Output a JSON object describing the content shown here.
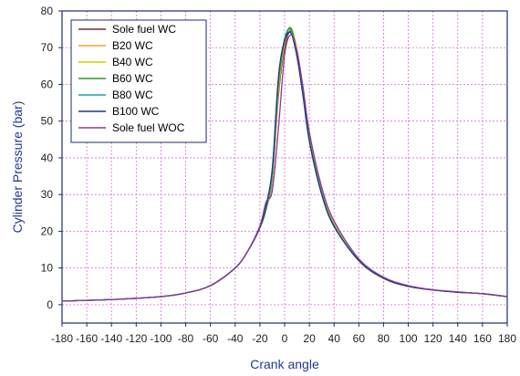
{
  "chart_data": {
    "type": "line",
    "title": "",
    "xlabel": "Crank angle",
    "ylabel": "Cylinder Pressure (bar)",
    "xlim": [
      -180,
      180
    ],
    "ylim": [
      -5,
      80
    ],
    "xticks": [
      -180,
      -160,
      -140,
      -120,
      -100,
      -80,
      -60,
      -40,
      -20,
      0,
      20,
      40,
      60,
      80,
      100,
      120,
      140,
      160,
      180
    ],
    "yticks": [
      0,
      10,
      20,
      30,
      40,
      50,
      60,
      70,
      80
    ],
    "grid": true,
    "legend_position": "top-left",
    "series": [
      {
        "name": "Sole fuel WC",
        "color": "#6b2e2e",
        "x": [
          -180,
          -140,
          -100,
          -80,
          -60,
          -40,
          -30,
          -20,
          -15,
          -10,
          -5,
          0,
          5,
          10,
          15,
          20,
          30,
          40,
          60,
          80,
          100,
          120,
          140,
          160,
          180
        ],
        "y": [
          1.0,
          1.4,
          2.2,
          3.2,
          5.2,
          10.0,
          14.5,
          21.0,
          26.0,
          34.0,
          57.0,
          70.0,
          74.5,
          69.0,
          58.0,
          46.0,
          31.0,
          22.0,
          12.0,
          7.2,
          5.0,
          4.0,
          3.4,
          3.0,
          2.2
        ]
      },
      {
        "name": "B20 WC",
        "color": "#f0a030",
        "x": [
          -180,
          -140,
          -100,
          -80,
          -60,
          -40,
          -30,
          -20,
          -15,
          -10,
          -5,
          0,
          5,
          10,
          15,
          20,
          30,
          40,
          60,
          80,
          100,
          120,
          140,
          160,
          180
        ],
        "y": [
          1.0,
          1.4,
          2.2,
          3.2,
          5.2,
          10.0,
          14.5,
          21.0,
          26.0,
          34.5,
          58.0,
          71.0,
          75.2,
          69.5,
          58.5,
          46.0,
          31.0,
          22.0,
          12.0,
          7.2,
          5.0,
          4.0,
          3.4,
          3.0,
          2.2
        ]
      },
      {
        "name": "B40 WC",
        "color": "#c8d000",
        "x": [
          -180,
          -140,
          -100,
          -80,
          -60,
          -40,
          -30,
          -20,
          -15,
          -10,
          -5,
          0,
          5,
          10,
          15,
          20,
          30,
          40,
          60,
          80,
          100,
          120,
          140,
          160,
          180
        ],
        "y": [
          1.0,
          1.4,
          2.2,
          3.2,
          5.2,
          10.0,
          14.5,
          21.0,
          26.0,
          35.0,
          59.0,
          71.5,
          75.5,
          69.0,
          58.0,
          45.5,
          30.5,
          21.8,
          12.0,
          7.2,
          5.0,
          4.0,
          3.4,
          3.0,
          2.2
        ]
      },
      {
        "name": "B60 WC",
        "color": "#2e9a2e",
        "x": [
          -180,
          -140,
          -100,
          -80,
          -60,
          -40,
          -30,
          -20,
          -15,
          -10,
          -5,
          0,
          5,
          10,
          15,
          20,
          30,
          40,
          60,
          80,
          100,
          120,
          140,
          160,
          180
        ],
        "y": [
          1.0,
          1.4,
          2.2,
          3.2,
          5.2,
          10.0,
          14.5,
          21.0,
          26.0,
          35.5,
          60.0,
          72.0,
          75.3,
          68.5,
          57.5,
          45.0,
          30.5,
          21.5,
          12.0,
          7.2,
          5.0,
          4.0,
          3.4,
          3.0,
          2.2
        ]
      },
      {
        "name": "B80 WC",
        "color": "#1aa0a0",
        "x": [
          -180,
          -140,
          -100,
          -80,
          -60,
          -40,
          -30,
          -20,
          -15,
          -10,
          -5,
          0,
          5,
          10,
          15,
          20,
          30,
          40,
          60,
          80,
          100,
          120,
          140,
          160,
          180
        ],
        "y": [
          1.0,
          1.4,
          2.2,
          3.2,
          5.2,
          10.0,
          14.5,
          21.0,
          26.5,
          36.0,
          61.0,
          72.5,
          74.8,
          68.0,
          57.0,
          44.8,
          30.2,
          21.5,
          12.0,
          7.2,
          5.0,
          4.0,
          3.4,
          3.0,
          2.2
        ]
      },
      {
        "name": "B100 WC",
        "color": "#1f3a7a",
        "x": [
          -180,
          -140,
          -100,
          -80,
          -60,
          -40,
          -30,
          -20,
          -15,
          -10,
          -5,
          0,
          5,
          10,
          15,
          20,
          30,
          40,
          60,
          80,
          100,
          120,
          140,
          160,
          180
        ],
        "y": [
          1.0,
          1.4,
          2.2,
          3.2,
          5.2,
          10.0,
          14.5,
          21.0,
          27.0,
          37.0,
          62.0,
          72.0,
          74.0,
          67.5,
          56.5,
          44.5,
          30.0,
          21.3,
          12.0,
          7.2,
          5.0,
          4.0,
          3.4,
          3.0,
          2.2
        ]
      },
      {
        "name": "Sole fuel WOC",
        "color": "#8a3a9a",
        "x": [
          -180,
          -140,
          -100,
          -80,
          -60,
          -40,
          -30,
          -20,
          -15,
          -10,
          -5,
          0,
          5,
          10,
          15,
          20,
          30,
          40,
          60,
          80,
          100,
          120,
          140,
          160,
          180
        ],
        "y": [
          1.0,
          1.4,
          2.2,
          3.2,
          5.2,
          10.0,
          14.5,
          21.5,
          28.0,
          31.0,
          48.0,
          68.0,
          73.5,
          69.0,
          59.0,
          47.0,
          32.0,
          22.8,
          12.5,
          7.5,
          5.2,
          4.1,
          3.5,
          3.0,
          2.2
        ]
      }
    ]
  }
}
